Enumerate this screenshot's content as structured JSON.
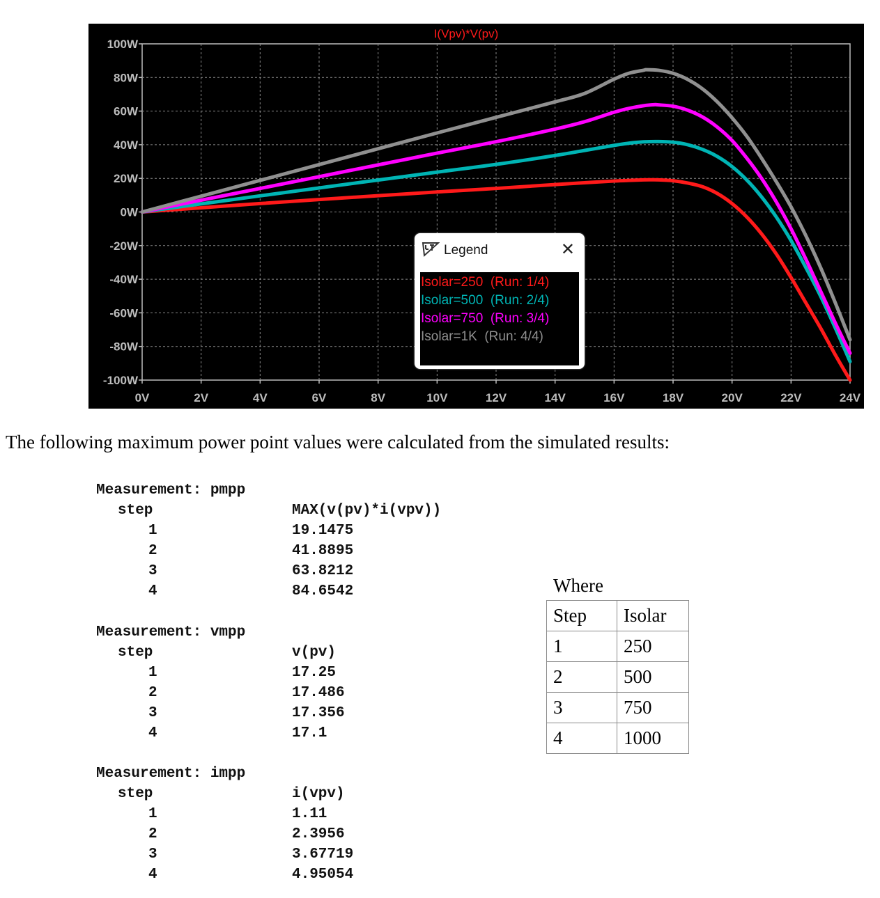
{
  "chart_data": {
    "type": "line",
    "title": "I(Vpv)*V(pv)",
    "title_color": "#ff1a1a",
    "background": "#000000",
    "grid": true,
    "xlim": [
      0,
      24
    ],
    "ylim": [
      -100,
      100
    ],
    "x_ticks": [
      "0V",
      "2V",
      "4V",
      "6V",
      "8V",
      "10V",
      "12V",
      "14V",
      "16V",
      "18V",
      "20V",
      "22V",
      "24V"
    ],
    "y_ticks": [
      "100W",
      "80W",
      "60W",
      "40W",
      "20W",
      "0W",
      "-20W",
      "-40W",
      "-60W",
      "-80W",
      "-100W"
    ],
    "x_tick_values": [
      0,
      2,
      4,
      6,
      8,
      10,
      12,
      14,
      16,
      18,
      20,
      22,
      24
    ],
    "y_tick_values": [
      100,
      80,
      60,
      40,
      20,
      0,
      -20,
      -40,
      -60,
      -80,
      -100
    ],
    "series": [
      {
        "color": "#ff1a1a",
        "x": [
          0,
          2,
          4,
          6,
          8,
          10,
          12,
          14,
          15,
          16,
          16.5,
          17,
          17.25,
          17.5,
          18,
          18.5,
          19,
          19.5,
          20,
          20.5,
          21,
          21.5,
          22,
          22.5,
          23,
          23.5,
          24
        ],
        "values": [
          0,
          2.5,
          5,
          7.4,
          9.7,
          11.9,
          14,
          16.3,
          17.4,
          18.4,
          18.8,
          19.1,
          19.15,
          19.1,
          18.6,
          17.2,
          15,
          11,
          5,
          -3,
          -13,
          -25,
          -39,
          -54,
          -69,
          -85,
          -100
        ]
      },
      {
        "color": "#00b4b4",
        "x": [
          0,
          2,
          4,
          6,
          8,
          10,
          12,
          14,
          15,
          16,
          16.5,
          17,
          17.5,
          18,
          18.5,
          19,
          19.5,
          20,
          20.5,
          21,
          21.5,
          22,
          22.5,
          23,
          23.5,
          24
        ],
        "values": [
          0,
          4.8,
          9.6,
          14.3,
          19,
          23.7,
          28.3,
          33.6,
          36.6,
          39.6,
          40.9,
          41.7,
          41.89,
          41.5,
          40,
          37.2,
          33,
          27,
          19,
          9,
          -3,
          -17,
          -33,
          -50,
          -69,
          -89
        ]
      },
      {
        "color": "#ff00ff",
        "x": [
          0,
          2,
          4,
          6,
          8,
          10,
          12,
          14,
          15,
          16,
          16.5,
          17,
          17.36,
          17.5,
          18,
          18.5,
          19,
          19.5,
          20,
          20.5,
          21,
          21.5,
          22,
          22.5,
          23,
          23.5,
          24
        ],
        "values": [
          0,
          7,
          14,
          21,
          28,
          35,
          41.8,
          49.3,
          53.7,
          59.3,
          61.6,
          63.2,
          63.82,
          63.7,
          62.9,
          60.5,
          56.5,
          50.5,
          42.5,
          32,
          20,
          6,
          -10,
          -28,
          -47,
          -66,
          -84
        ]
      },
      {
        "color": "#909090",
        "x": [
          0,
          2,
          4,
          6,
          8,
          10,
          12,
          14,
          15,
          16,
          16.5,
          17,
          17.1,
          17.5,
          18,
          18.5,
          19,
          19.5,
          20,
          20.5,
          21,
          21.5,
          22,
          22.5,
          23,
          23.5,
          24
        ],
        "values": [
          0,
          9.4,
          18.8,
          28.2,
          37.6,
          47,
          56.3,
          65.5,
          70.5,
          79,
          82.5,
          84.3,
          84.65,
          84.3,
          82.5,
          78.8,
          73.2,
          65.5,
          56,
          45,
          32,
          18,
          3,
          -14,
          -33,
          -54,
          -76
        ]
      }
    ]
  },
  "legend": {
    "title": "Legend",
    "entries": [
      {
        "color": "#ff1a1a",
        "name": "Isolar=250",
        "run": "(Run: 1/4)"
      },
      {
        "color": "#00b4b4",
        "name": "Isolar=500",
        "run": "(Run: 2/4)"
      },
      {
        "color": "#ff00ff",
        "name": "Isolar=750",
        "run": "(Run: 3/4)"
      },
      {
        "color": "#909090",
        "name": "Isolar=1K",
        "run": "(Run: 4/4)"
      }
    ]
  },
  "caption": "The following maximum power point values were calculated from the simulated results:",
  "measurements": [
    {
      "title": "Measurement: pmpp",
      "step_label": "step",
      "expr": "MAX(v(pv)*i(vpv))",
      "steps": [
        "1",
        "2",
        "3",
        "4"
      ],
      "values": [
        "19.1475",
        "41.8895",
        "63.8212",
        "84.6542"
      ]
    },
    {
      "title": "Measurement: vmpp",
      "step_label": "step",
      "expr": "v(pv)",
      "steps": [
        "1",
        "2",
        "3",
        "4"
      ],
      "values": [
        "17.25",
        "17.486",
        "17.356",
        "17.1"
      ]
    },
    {
      "title": "Measurement: impp",
      "step_label": "step",
      "expr": "i(vpv)",
      "steps": [
        "1",
        "2",
        "3",
        "4"
      ],
      "values": [
        "1.11",
        "2.3956",
        "3.67719",
        "4.95054"
      ]
    }
  ],
  "where_label": "Where",
  "isolar_table": {
    "headers": [
      "Step",
      "Isolar"
    ],
    "rows": [
      [
        "1",
        "250"
      ],
      [
        "2",
        "500"
      ],
      [
        "3",
        "750"
      ],
      [
        "4",
        "1000"
      ]
    ]
  }
}
